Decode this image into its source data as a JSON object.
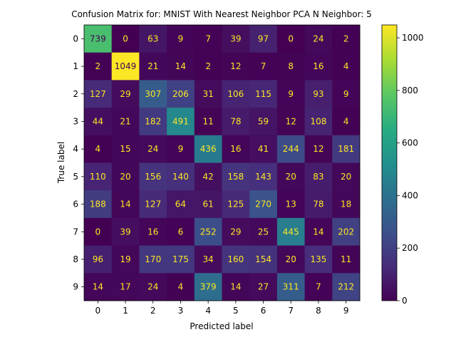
{
  "chart_data": {
    "type": "heatmap",
    "title": "Confusion Matrix for: MNIST With Nearest Neighbor PCA N Neighbor: 5",
    "xlabel": "Predicted label",
    "ylabel": "True label",
    "x_categories": [
      "0",
      "1",
      "2",
      "3",
      "4",
      "5",
      "6",
      "7",
      "8",
      "9"
    ],
    "y_categories": [
      "0",
      "1",
      "2",
      "3",
      "4",
      "5",
      "6",
      "7",
      "8",
      "9"
    ],
    "values": [
      [
        739,
        0,
        63,
        9,
        7,
        39,
        97,
        0,
        24,
        2
      ],
      [
        2,
        1049,
        21,
        14,
        2,
        12,
        7,
        8,
        16,
        4
      ],
      [
        127,
        29,
        307,
        206,
        31,
        106,
        115,
        9,
        93,
        9
      ],
      [
        44,
        21,
        182,
        491,
        11,
        78,
        59,
        12,
        108,
        4
      ],
      [
        4,
        15,
        24,
        9,
        436,
        16,
        41,
        244,
        12,
        181
      ],
      [
        110,
        20,
        156,
        140,
        42,
        158,
        143,
        20,
        83,
        20
      ],
      [
        188,
        14,
        127,
        64,
        61,
        125,
        270,
        13,
        78,
        18
      ],
      [
        0,
        39,
        16,
        6,
        252,
        29,
        25,
        445,
        14,
        202
      ],
      [
        96,
        19,
        170,
        175,
        34,
        160,
        154,
        20,
        135,
        11
      ],
      [
        14,
        17,
        24,
        4,
        379,
        14,
        27,
        311,
        7,
        212
      ]
    ],
    "colormap": "viridis",
    "colorbar": {
      "range": [
        0,
        1049
      ],
      "ticks": [
        0,
        200,
        400,
        600,
        800,
        1000
      ]
    },
    "text_colors": {
      "on_dark": "#fde725",
      "on_light": "#440154"
    }
  }
}
